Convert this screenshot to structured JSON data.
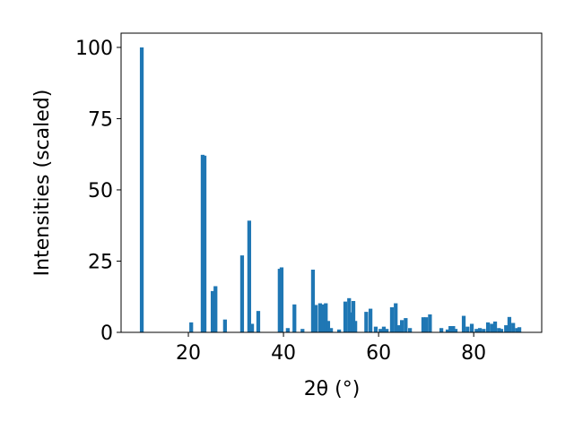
{
  "chart_data": {
    "type": "bar",
    "xlabel": "2θ (°)",
    "ylabel": "Intensities (scaled)",
    "x": [
      10.2,
      20.6,
      23.0,
      23.4,
      25.1,
      25.7,
      27.7,
      31.3,
      32.8,
      33.4,
      34.7,
      39.2,
      39.6,
      40.9,
      42.3,
      44.0,
      46.2,
      46.8,
      47.7,
      48.3,
      48.9,
      49.4,
      50.0,
      51.7,
      53.0,
      53.8,
      54.2,
      54.7,
      55.1,
      57.4,
      58.3,
      59.4,
      60.4,
      61.1,
      61.7,
      62.8,
      63.6,
      64.2,
      64.9,
      65.7,
      66.6,
      69.4,
      70.0,
      70.8,
      73.2,
      74.5,
      75.1,
      75.7,
      76.2,
      77.9,
      78.7,
      79.6,
      80.6,
      81.3,
      82.1,
      83.0,
      83.8,
      84.5,
      85.3,
      85.8,
      86.8,
      87.5,
      88.3,
      89.1,
      89.6
    ],
    "values": [
      100,
      3.5,
      62.3,
      62,
      14.5,
      16.2,
      4.5,
      27,
      39.2,
      3,
      7.5,
      22.3,
      22.8,
      1.5,
      9.8,
      1.2,
      22,
      9.6,
      10.2,
      9.8,
      10.2,
      4,
      1.5,
      1,
      10.8,
      12,
      7,
      11,
      4,
      7.2,
      8.3,
      2,
      1.2,
      2,
      1.2,
      8.8,
      10.2,
      2.5,
      4.3,
      5,
      1.5,
      5.3,
      5.3,
      6.3,
      1.5,
      1,
      2.2,
      2.2,
      1.2,
      5.8,
      2,
      3,
      1.2,
      1.5,
      1.2,
      3.5,
      3,
      3.8,
      1.5,
      1.2,
      2.5,
      5.4,
      3.3,
      1.5,
      1.8
    ],
    "color": "#1f77b4",
    "xlim": [
      5.85,
      94.3
    ],
    "xticks": [
      20,
      40,
      60,
      80
    ],
    "ylim": [
      0,
      105
    ],
    "yticks": [
      0,
      25,
      50,
      75,
      100
    ]
  }
}
